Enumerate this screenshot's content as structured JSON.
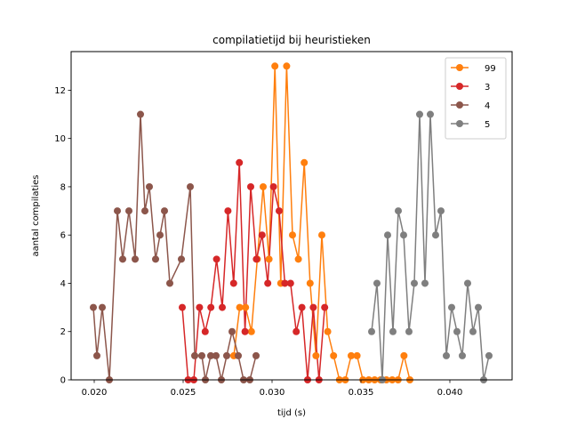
{
  "chart_data": {
    "type": "line",
    "title": "compilatietijd bij heuristieken",
    "xlabel": "tijd (s)",
    "ylabel": "aantal compilaties",
    "xlim": [
      0.0187,
      0.0435
    ],
    "ylim": [
      0,
      13.6
    ],
    "xticks": [
      0.02,
      0.025,
      0.03,
      0.035,
      0.04
    ],
    "xtick_labels": [
      "0.020",
      "0.025",
      "0.030",
      "0.035",
      "0.040"
    ],
    "yticks": [
      0,
      2,
      4,
      6,
      8,
      10,
      12
    ],
    "ytick_labels": [
      "0",
      "2",
      "4",
      "6",
      "8",
      "10",
      "12"
    ],
    "grid": false,
    "legend_position": "top-right",
    "series": [
      {
        "name": "99",
        "color": "#ff7f0e",
        "x": [
          0.02785,
          0.02818,
          0.02851,
          0.02884,
          0.02917,
          0.0295,
          0.02983,
          0.03016,
          0.03049,
          0.03082,
          0.03115,
          0.03148,
          0.03181,
          0.03214,
          0.03247,
          0.0328,
          0.03313,
          0.03346,
          0.03379,
          0.03412,
          0.03445,
          0.03478,
          0.03511,
          0.03544,
          0.03577,
          0.0361,
          0.03643,
          0.03676,
          0.03709,
          0.03742,
          0.03775
        ],
        "y": [
          1,
          3,
          3,
          2,
          5,
          8,
          5,
          13,
          4,
          13,
          6,
          5,
          9,
          4,
          1,
          6,
          2,
          1,
          0,
          0,
          1,
          1,
          0,
          0,
          0,
          0,
          0,
          0,
          0,
          1,
          0
        ]
      },
      {
        "name": "3",
        "color": "#d62728",
        "x": [
          0.02495,
          0.02528,
          0.0256,
          0.02592,
          0.02624,
          0.02656,
          0.02688,
          0.0272,
          0.02752,
          0.02784,
          0.02816,
          0.02848,
          0.0288,
          0.02912,
          0.02944,
          0.02976,
          0.03008,
          0.0304,
          0.03072,
          0.03104,
          0.03136,
          0.03168,
          0.032,
          0.03232,
          0.03264,
          0.03296
        ],
        "y": [
          3,
          0,
          0,
          3,
          2,
          3,
          5,
          3,
          7,
          4,
          9,
          2,
          8,
          5,
          6,
          4,
          8,
          7,
          4,
          4,
          2,
          3,
          0,
          3,
          0,
          3
        ]
      },
      {
        "name": "4",
        "color": "#8c564b",
        "x": [
          0.01995,
          0.02015,
          0.02045,
          0.02085,
          0.0213,
          0.0216,
          0.02195,
          0.0223,
          0.0226,
          0.02285,
          0.0231,
          0.02345,
          0.0237,
          0.02395,
          0.02425,
          0.0249,
          0.0254,
          0.02565,
          0.02605,
          0.02625,
          0.02655,
          0.02685,
          0.02715,
          0.02745,
          0.02775,
          0.0281,
          0.0284,
          0.02875,
          0.0291
        ],
        "y": [
          3,
          1,
          3,
          0,
          7,
          5,
          7,
          5,
          11,
          7,
          8,
          5,
          6,
          7,
          4,
          5,
          8,
          1,
          1,
          0,
          1,
          1,
          0,
          1,
          2,
          1,
          0,
          0,
          1
        ]
      },
      {
        "name": "5",
        "color": "#7f7f7f",
        "x": [
          0.0356,
          0.0359,
          0.0362,
          0.0365,
          0.0368,
          0.0371,
          0.0374,
          0.0377,
          0.038,
          0.0383,
          0.0386,
          0.0389,
          0.0392,
          0.0395,
          0.0398,
          0.0401,
          0.0404,
          0.0407,
          0.041,
          0.0413,
          0.0416,
          0.0419,
          0.0422
        ],
        "y": [
          2,
          4,
          0,
          6,
          2,
          7,
          6,
          2,
          4,
          11,
          4,
          11,
          6,
          7,
          1,
          3,
          2,
          1,
          4,
          2,
          3,
          0,
          1
        ]
      }
    ]
  }
}
